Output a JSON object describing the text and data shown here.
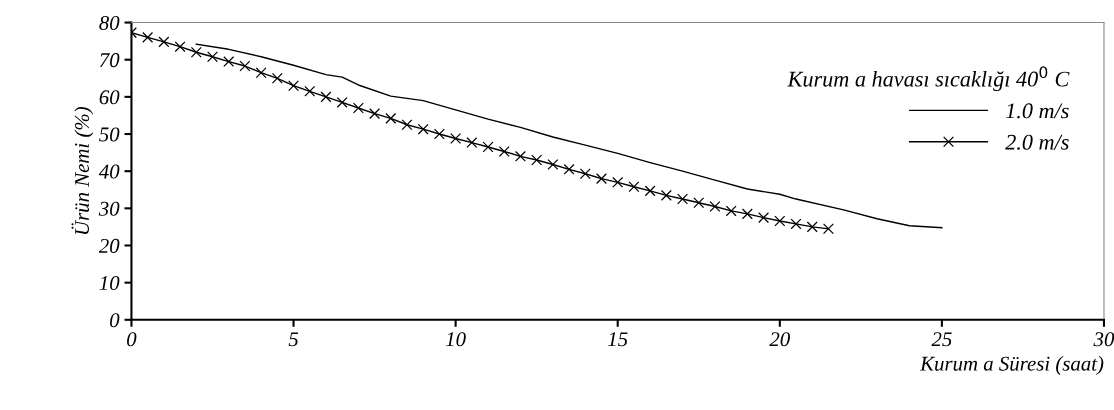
{
  "chart_data": {
    "type": "line",
    "xlabel": "Kurum a Süresi (saat)",
    "ylabel": "Ürün Nemi (%)",
    "legend_title": "Kurum a havası sıcaklığı 40$^{0}$ C",
    "xlim": [
      0,
      30
    ],
    "xticks": [
      0,
      5,
      10,
      15,
      20,
      25,
      30
    ],
    "ylim": [
      0,
      80
    ],
    "yticks": [
      0,
      10,
      20,
      30,
      40,
      50,
      60,
      70,
      80
    ],
    "grid": false,
    "legend": "top right",
    "line_style": "solid",
    "series": [
      {
        "name": "1.0 m/s",
        "color": "#000000",
        "marker": "none",
        "x": [
          2,
          3,
          4,
          5,
          6,
          6.5,
          7,
          8,
          9,
          10,
          11,
          12,
          13,
          14,
          15,
          16,
          17,
          18,
          19,
          20,
          20.5,
          22,
          23,
          24,
          25
        ],
        "values": [
          74.2,
          72.8,
          70.8,
          68.5,
          66,
          65.3,
          63.2,
          60.2,
          59,
          56.5,
          54,
          51.8,
          49.2,
          47,
          44.8,
          42.3,
          40,
          37.6,
          35.2,
          33.8,
          32.5,
          29.5,
          27.2,
          25.3,
          24.8
        ]
      },
      {
        "name": "2.0 m/s",
        "color": "#000000",
        "marker": "cross",
        "x": [
          0,
          0.5,
          1,
          1.5,
          2,
          2.5,
          3,
          3.5,
          4,
          4.5,
          5,
          5.5,
          6,
          6.5,
          7,
          7.5,
          8,
          8.5,
          9,
          9.5,
          10,
          10.5,
          11,
          11.5,
          12,
          12.5,
          13,
          13.5,
          14,
          14.5,
          15,
          15.5,
          16,
          16.5,
          17,
          17.5,
          18,
          18.5,
          19,
          19.5,
          20,
          20.5,
          21,
          21.5
        ],
        "values": [
          77.3,
          76,
          74.8,
          73.5,
          72,
          70.8,
          69.5,
          68.3,
          66.5,
          65,
          63,
          61.5,
          60,
          58.5,
          57,
          55.5,
          54.2,
          52.5,
          51.3,
          50,
          48.8,
          47.7,
          46.5,
          45.3,
          44,
          43,
          41.8,
          40.5,
          39.3,
          38,
          37,
          35.8,
          34.7,
          33.5,
          32.5,
          31.5,
          30.5,
          29.3,
          28.5,
          27.5,
          26.6,
          25.8,
          25,
          24.5
        ]
      }
    ]
  }
}
